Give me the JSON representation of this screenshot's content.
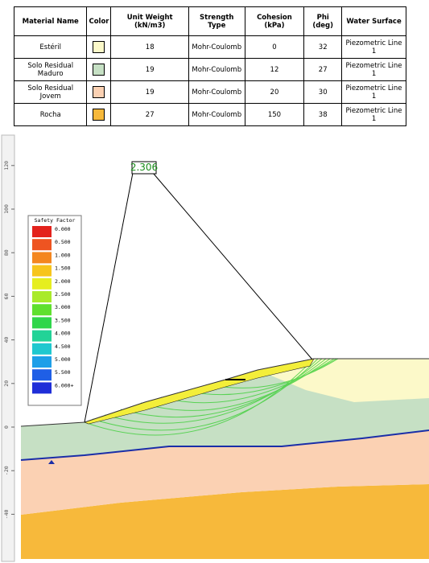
{
  "table": {
    "headers": [
      "Material Name",
      "Color",
      "Unit Weight (kN/m3)",
      "Strength Type",
      "Cohesion (kPa)",
      "Phi (deg)",
      "Water Surface"
    ],
    "rows": [
      {
        "name": "Estéril",
        "color": "#fcf9c9",
        "unit_weight": 18,
        "strength_type": "Mohr-Coulomb",
        "cohesion": 0,
        "phi": 32,
        "water_surface": "Piezometric Line 1"
      },
      {
        "name": "Solo Residual Maduro",
        "color": "#c6e0c4",
        "unit_weight": 19,
        "strength_type": "Mohr-Coulomb",
        "cohesion": 12,
        "phi": 27,
        "water_surface": "Piezometric Line 1"
      },
      {
        "name": "Solo Residual Jovem",
        "color": "#fbd1b3",
        "unit_weight": 19,
        "strength_type": "Mohr-Coulomb",
        "cohesion": 20,
        "phi": 30,
        "water_surface": "Piezometric Line 1"
      },
      {
        "name": "Rocha",
        "color": "#f7b93b",
        "unit_weight": 27,
        "strength_type": "Mohr-Coulomb",
        "cohesion": 150,
        "phi": 38,
        "water_surface": "Piezometric Line 1"
      }
    ]
  },
  "diagram": {
    "factor_label": "2.306",
    "legend": {
      "title": "Safety Factor",
      "items": [
        {
          "label": "0.000",
          "color": "#e3221c"
        },
        {
          "label": "0.500",
          "color": "#ee5421"
        },
        {
          "label": "1.000",
          "color": "#f4861f"
        },
        {
          "label": "1.500",
          "color": "#f7c51c"
        },
        {
          "label": "2.000",
          "color": "#e6ee1f"
        },
        {
          "label": "2.500",
          "color": "#a9ea2a"
        },
        {
          "label": "3.000",
          "color": "#5fe02e"
        },
        {
          "label": "3.500",
          "color": "#2fd64a"
        },
        {
          "label": "4.000",
          "color": "#22d397"
        },
        {
          "label": "4.500",
          "color": "#1fc8cf"
        },
        {
          "label": "5.000",
          "color": "#1e9fe8"
        },
        {
          "label": "5.500",
          "color": "#1f5fe6"
        },
        {
          "label": "6.000+",
          "color": "#1f2ed8"
        }
      ]
    },
    "ruler_ticks": [
      120,
      100,
      80,
      60,
      40,
      20,
      0,
      -20,
      -40
    ]
  }
}
